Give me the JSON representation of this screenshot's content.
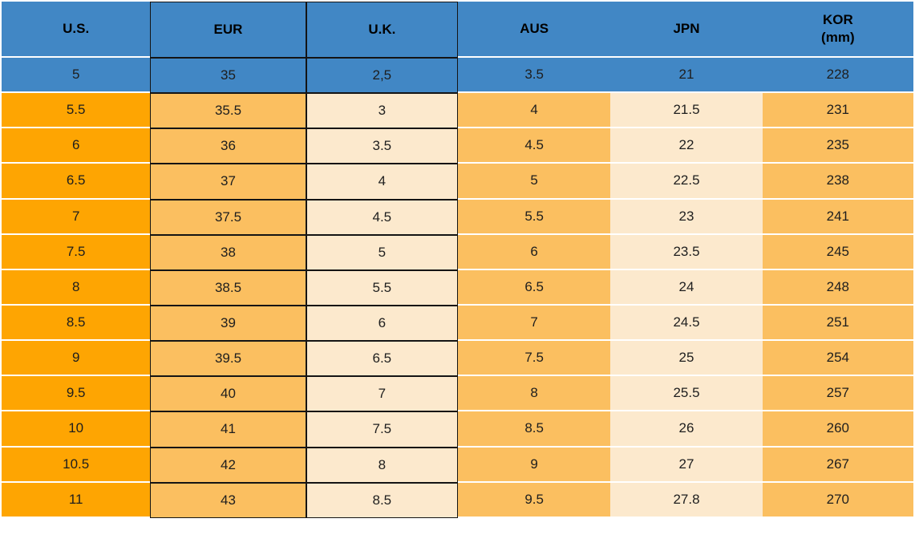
{
  "colors": {
    "blue": "#4187C5",
    "orange_bright": "#FEA502",
    "orange_mid": "#FBBF60",
    "cream": "#FCE9CD",
    "border_black": "#141414",
    "separator_white": "#FFFFFF"
  },
  "table": {
    "header": {
      "cells": [
        {
          "key": "us",
          "label": "U.S.",
          "sublabel": ""
        },
        {
          "key": "eur",
          "label": "EUR",
          "sublabel": ""
        },
        {
          "key": "uk",
          "label": "U.K.",
          "sublabel": ""
        },
        {
          "key": "aus",
          "label": "AUS",
          "sublabel": ""
        },
        {
          "key": "jpn",
          "label": "JPN",
          "sublabel": ""
        },
        {
          "key": "kor",
          "label": "KOR",
          "sublabel": "(mm)"
        }
      ]
    },
    "rows": [
      {
        "theme": "blue",
        "cells": [
          "5",
          "35",
          "2,5",
          "3.5",
          "21",
          "228"
        ]
      },
      {
        "theme": "orange",
        "cells": [
          "5.5",
          "35.5",
          "3",
          "4",
          "21.5",
          "231"
        ]
      },
      {
        "theme": "orange",
        "cells": [
          "6",
          "36",
          "3.5",
          "4.5",
          "22",
          "235"
        ]
      },
      {
        "theme": "orange",
        "cells": [
          "6.5",
          "37",
          "4",
          "5",
          "22.5",
          "238"
        ]
      },
      {
        "theme": "orange",
        "cells": [
          "7",
          "37.5",
          "4.5",
          "5.5",
          "23",
          "241"
        ]
      },
      {
        "theme": "orange",
        "cells": [
          "7.5",
          "38",
          "5",
          "6",
          "23.5",
          "245"
        ]
      },
      {
        "theme": "orange",
        "cells": [
          "8",
          "38.5",
          "5.5",
          "6.5",
          "24",
          "248"
        ]
      },
      {
        "theme": "orange",
        "cells": [
          "8.5",
          "39",
          "6",
          "7",
          "24.5",
          "251"
        ]
      },
      {
        "theme": "orange",
        "cells": [
          "9",
          "39.5",
          "6.5",
          "7.5",
          "25",
          "254"
        ]
      },
      {
        "theme": "orange",
        "cells": [
          "9.5",
          "40",
          "7",
          "8",
          "25.5",
          "257"
        ]
      },
      {
        "theme": "orange",
        "cells": [
          "10",
          "41",
          "7.5",
          "8.5",
          "26",
          "260"
        ]
      },
      {
        "theme": "orange",
        "cells": [
          "10.5",
          "42",
          "8",
          "9",
          "27",
          "267"
        ]
      },
      {
        "theme": "orange",
        "cells": [
          "11",
          "43",
          "8.5",
          "9.5",
          "27.8",
          "270"
        ]
      }
    ]
  },
  "chart_data": {
    "type": "table",
    "columns": [
      "U.S.",
      "EUR",
      "U.K.",
      "AUS",
      "JPN",
      "KOR (mm)"
    ],
    "rows": [
      [
        "5",
        "35",
        "2,5",
        "3.5",
        "21",
        "228"
      ],
      [
        "5.5",
        "35.5",
        "3",
        "4",
        "21.5",
        "231"
      ],
      [
        "6",
        "36",
        "3.5",
        "4.5",
        "22",
        "235"
      ],
      [
        "6.5",
        "37",
        "4",
        "5",
        "22.5",
        "238"
      ],
      [
        "7",
        "37.5",
        "4.5",
        "5.5",
        "23",
        "241"
      ],
      [
        "7.5",
        "38",
        "5",
        "6",
        "23.5",
        "245"
      ],
      [
        "8",
        "38.5",
        "5.5",
        "6.5",
        "24",
        "248"
      ],
      [
        "8.5",
        "39",
        "6",
        "7",
        "24.5",
        "251"
      ],
      [
        "9",
        "39.5",
        "6.5",
        "7.5",
        "25",
        "254"
      ],
      [
        "9.5",
        "40",
        "7",
        "8",
        "25.5",
        "257"
      ],
      [
        "10",
        "41",
        "7.5",
        "8.5",
        "26",
        "260"
      ],
      [
        "10.5",
        "42",
        "8",
        "9",
        "27",
        "267"
      ],
      [
        "11",
        "43",
        "8.5",
        "9.5",
        "27.8",
        "270"
      ]
    ]
  }
}
